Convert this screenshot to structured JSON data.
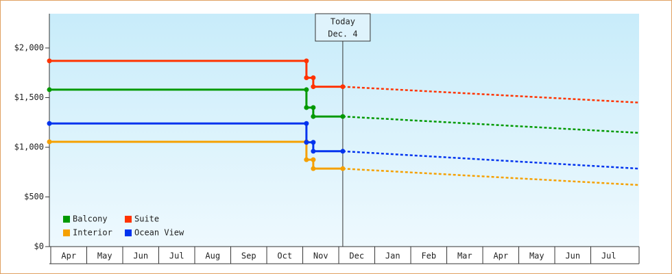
{
  "chart_data": {
    "type": "step-line",
    "xlim": [
      0,
      16.38
    ],
    "xticks": [
      {
        "value": 0,
        "label": "Apr"
      },
      {
        "value": 1,
        "label": "May"
      },
      {
        "value": 2,
        "label": "Jun"
      },
      {
        "value": 3,
        "label": "Jul"
      },
      {
        "value": 4,
        "label": "Aug"
      },
      {
        "value": 5,
        "label": "Sep"
      },
      {
        "value": 6,
        "label": "Oct"
      },
      {
        "value": 7,
        "label": "Nov"
      },
      {
        "value": 8,
        "label": "Dec"
      },
      {
        "value": 9,
        "label": "Jan"
      },
      {
        "value": 10,
        "label": "Feb"
      },
      {
        "value": 11,
        "label": "Mar"
      },
      {
        "value": 12,
        "label": "Apr"
      },
      {
        "value": 13,
        "label": "May"
      },
      {
        "value": 14,
        "label": "Jun"
      },
      {
        "value": 15,
        "label": "Jul"
      }
    ],
    "ylim": [
      0,
      2345
    ],
    "yticks": [
      {
        "value": 0,
        "label": "$0"
      },
      {
        "value": 500,
        "label": "$500"
      },
      {
        "value": 1000,
        "label": "$1,000"
      },
      {
        "value": 1500,
        "label": "$1,500"
      },
      {
        "value": 2000,
        "label": "$2,000"
      }
    ],
    "legend": "lower left",
    "annotation": {
      "x": 8.15,
      "label": "Today",
      "date": "Dec. 4"
    },
    "series": [
      {
        "name": "Balcony",
        "color": "#009900",
        "x": [
          0,
          7.14,
          7.14,
          7.33,
          7.33,
          8.15
        ],
        "values": [
          1580,
          1580,
          1400,
          1400,
          1310,
          1310
        ],
        "forecast": {
          "x": [
            8.15,
            16.38
          ],
          "values": [
            1310,
            1145
          ]
        }
      },
      {
        "name": "Suite",
        "color": "#ff3300",
        "x": [
          0,
          7.14,
          7.14,
          7.33,
          7.33,
          8.15
        ],
        "values": [
          1870,
          1870,
          1700,
          1700,
          1610,
          1610
        ],
        "forecast": {
          "x": [
            8.15,
            16.38
          ],
          "values": [
            1610,
            1450
          ]
        }
      },
      {
        "name": "Interior",
        "color": "#f5a000",
        "x": [
          0,
          7.14,
          7.14,
          7.33,
          7.33,
          8.15
        ],
        "values": [
          1055,
          1055,
          875,
          875,
          785,
          785
        ],
        "forecast": {
          "x": [
            8.15,
            16.38
          ],
          "values": [
            785,
            620
          ]
        }
      },
      {
        "name": "Ocean View",
        "color": "#0033ee",
        "x": [
          0,
          7.14,
          7.14,
          7.33,
          7.33,
          8.15
        ],
        "values": [
          1240,
          1240,
          1050,
          1050,
          960,
          960
        ],
        "forecast": {
          "x": [
            8.15,
            16.38
          ],
          "values": [
            960,
            785
          ]
        }
      }
    ]
  }
}
